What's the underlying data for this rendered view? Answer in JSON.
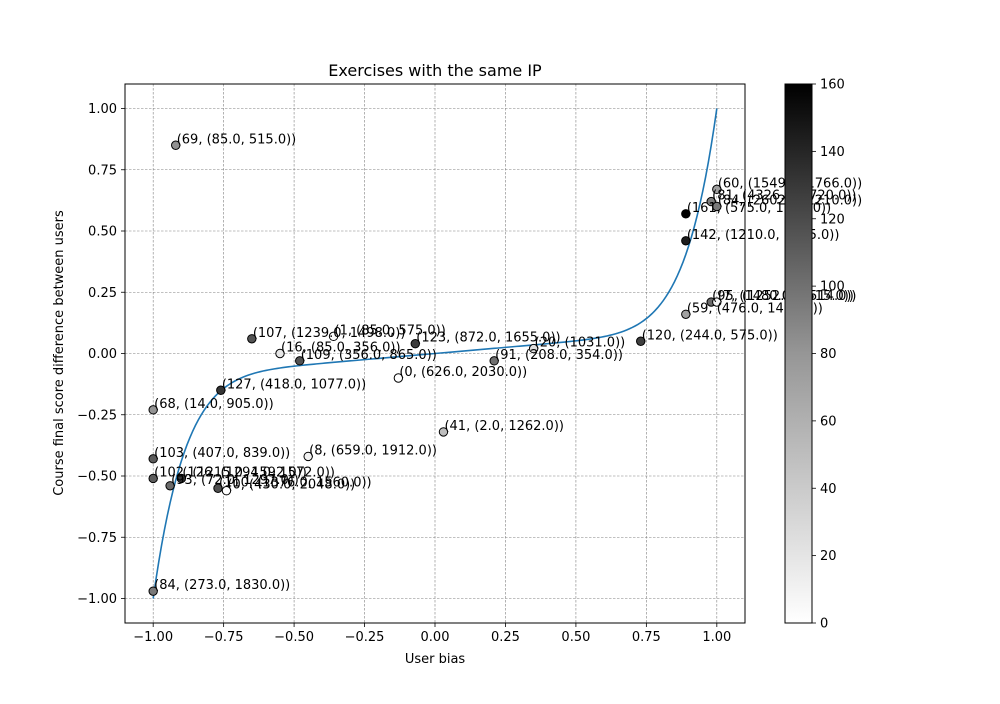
{
  "chart_data": {
    "type": "scatter",
    "title": "Exercises with the same IP",
    "xlabel": "User bias",
    "ylabel": "Course final score difference between users",
    "xlim": [
      -1.1,
      1.1
    ],
    "ylim": [
      -1.1,
      1.1
    ],
    "xticks": [
      -1.0,
      -0.75,
      -0.5,
      -0.25,
      0.0,
      0.25,
      0.5,
      0.75,
      1.0
    ],
    "xtick_labels": [
      "−1.00",
      "−0.75",
      "−0.50",
      "−0.25",
      "0.00",
      "0.25",
      "0.50",
      "0.75",
      "1.00"
    ],
    "yticks": [
      -1.0,
      -0.75,
      -0.5,
      -0.25,
      0.0,
      0.25,
      0.5,
      0.75,
      1.0
    ],
    "ytick_labels": [
      "−1.00",
      "−0.75",
      "−0.50",
      "−0.25",
      "0.00",
      "0.25",
      "0.50",
      "0.75",
      "1.00"
    ],
    "grid": true,
    "colorbar": {
      "min": 0,
      "max": 160,
      "ticks": [
        0,
        20,
        40,
        60,
        80,
        100,
        120,
        140,
        160
      ],
      "tick_labels": [
        "0",
        "20",
        "40",
        "60",
        "80",
        "100",
        "120",
        "140",
        "160"
      ],
      "colormap": "Greys"
    },
    "fit_curve": {
      "color": "#1f77b4",
      "type": "odd polynomial fit"
    },
    "points": [
      {
        "x": -0.92,
        "y": 0.85,
        "c": 69,
        "label": "(69, (85.0, 515.0))"
      },
      {
        "x": -0.65,
        "y": 0.06,
        "c": 107,
        "label": "(107, (1239.0, 1498.0))"
      },
      {
        "x": -0.36,
        "y": 0.07,
        "c": 1,
        "label": "(1, (85.0, 575.0))"
      },
      {
        "x": -0.07,
        "y": 0.04,
        "c": 123,
        "label": "(123, (872.0, 1655.0))"
      },
      {
        "x": -0.55,
        "y": 0.0,
        "c": 16,
        "label": "(16, (85.0, 356.0))"
      },
      {
        "x": -0.48,
        "y": -0.03,
        "c": 109,
        "label": "(109, (356.0, 865.0))"
      },
      {
        "x": -0.13,
        "y": -0.1,
        "c": 0,
        "label": "(0, (626.0, 2030.0))"
      },
      {
        "x": 0.21,
        "y": -0.03,
        "c": 91,
        "label": "(91, (208.0, 354.0))"
      },
      {
        "x": 0.35,
        "y": 0.02,
        "c": 20,
        "label": "(20, (1031.0))"
      },
      {
        "x": -0.76,
        "y": -0.15,
        "c": 127,
        "label": "(127, (418.0, 1077.0))"
      },
      {
        "x": -1.0,
        "y": -0.23,
        "c": 68,
        "label": "(68, (14.0, 905.0))"
      },
      {
        "x": -1.0,
        "y": -0.43,
        "c": 103,
        "label": "(103, (407.0, 839.0))"
      },
      {
        "x": -0.45,
        "y": -0.42,
        "c": 8,
        "label": "(8, (659.0, 1912.0))"
      },
      {
        "x": 0.03,
        "y": -0.32,
        "c": 41,
        "label": "(41, (2.0, 1262.0))"
      },
      {
        "x": -1.0,
        "y": -0.51,
        "c": 102,
        "label": "(102, (1215.0, 1592.0))"
      },
      {
        "x": -0.9,
        "y": -0.51,
        "c": 126,
        "label": "(126, (1294.0, 1572.0))"
      },
      {
        "x": -0.94,
        "y": -0.54,
        "c": 93,
        "label": "(93, (72.0, 1297.0))"
      },
      {
        "x": -0.77,
        "y": -0.55,
        "c": 110,
        "label": "(110, (1376.0, 1560.0))"
      },
      {
        "x": -0.74,
        "y": -0.56,
        "c": 0,
        "label": "(0, (430.0, 2048.0))"
      },
      {
        "x": -1.0,
        "y": -0.97,
        "c": 84,
        "label": "(84, (273.0, 1830.0))"
      },
      {
        "x": 0.73,
        "y": 0.05,
        "c": 120,
        "label": "(120, (244.0, 575.0))"
      },
      {
        "x": 0.89,
        "y": 0.46,
        "c": 142,
        "label": "(142, (1210.0, 1255.0))"
      },
      {
        "x": 0.89,
        "y": 0.57,
        "c": 161,
        "label": "(161, (575.0, 1108.0))"
      },
      {
        "x": 1.0,
        "y": 0.67,
        "c": 60,
        "label": "(60, (1549.0, 1766.0))"
      },
      {
        "x": 0.98,
        "y": 0.62,
        "c": 81,
        "label": "(81, (4326.0, 4720.0))"
      },
      {
        "x": 1.0,
        "y": 0.6,
        "c": 84,
        "label": "(84, (2602.0, 1210.0))"
      },
      {
        "x": 0.89,
        "y": 0.16,
        "c": 59,
        "label": "(59, (476.0, 1498.0))"
      },
      {
        "x": 0.98,
        "y": 0.21,
        "c": 95,
        "label": "(95, (1252.0, 1514.0))"
      },
      {
        "x": 1.0,
        "y": 0.21,
        "c": 7,
        "label": "(7, (1480.0, 1515.0))"
      }
    ]
  }
}
